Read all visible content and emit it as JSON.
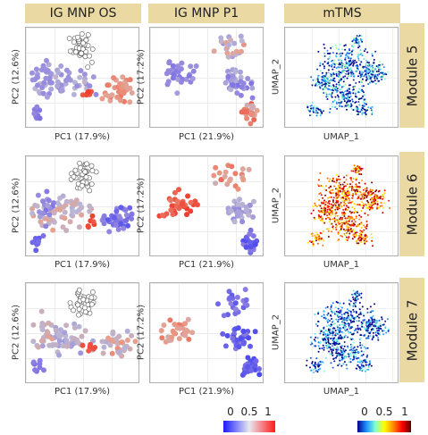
{
  "columns": [
    {
      "title": "IG MNP OS"
    },
    {
      "title": "IG MNP P1"
    },
    {
      "title": "mTMS"
    }
  ],
  "rows": [
    {
      "label": "Module 5"
    },
    {
      "label": "Module 6"
    },
    {
      "label": "Module 7"
    }
  ],
  "axes": {
    "os_x": "PC1 (17.9%)",
    "os_y": "PC2 (12.6%)",
    "p1_x": "PC1 (21.9%)",
    "p1_y": "PC2 (17.2%)",
    "umap_x": "UMAP_1",
    "umap_y": "UMAP_2"
  },
  "legends": {
    "pca": {
      "colors": [
        "#1a1aff",
        "#e8e8f0",
        "#ff1a1a"
      ],
      "ticks": [
        "0",
        "0.5",
        "1"
      ]
    },
    "umap": {
      "colors": [
        "#00008b",
        "#1e90ff",
        "#7fffd4",
        "#ffff00",
        "#ff8c00",
        "#ff0000",
        "#5a0000"
      ],
      "ticks": [
        "0",
        "0.5",
        "1"
      ]
    }
  },
  "chart_data": {
    "type": "scatter",
    "description_note": "",
    "panels": [
      {
        "row": "Module 5",
        "column": "IG MNP OS",
        "kind": "pca",
        "high_group": "right cluster"
      },
      {
        "row": "Module 5",
        "column": "IG MNP P1",
        "kind": "pca",
        "high_group": "lower-right cluster"
      },
      {
        "row": "Module 5",
        "column": "mTMS",
        "kind": "umap",
        "level": 0.15
      },
      {
        "row": "Module 6",
        "column": "IG MNP OS",
        "kind": "pca",
        "high_group": "center"
      },
      {
        "row": "Module 6",
        "column": "IG MNP P1",
        "kind": "pca",
        "high_group": "left cluster"
      },
      {
        "row": "Module 6",
        "column": "mTMS",
        "kind": "umap",
        "level": 0.75
      },
      {
        "row": "Module 7",
        "column": "IG MNP OS",
        "kind": "pca",
        "high_group": "left + right"
      },
      {
        "row": "Module 7",
        "column": "IG MNP P1",
        "kind": "pca",
        "high_group": "left cluster"
      },
      {
        "row": "Module 7",
        "column": "mTMS",
        "kind": "umap",
        "level": 0.1
      }
    ]
  }
}
